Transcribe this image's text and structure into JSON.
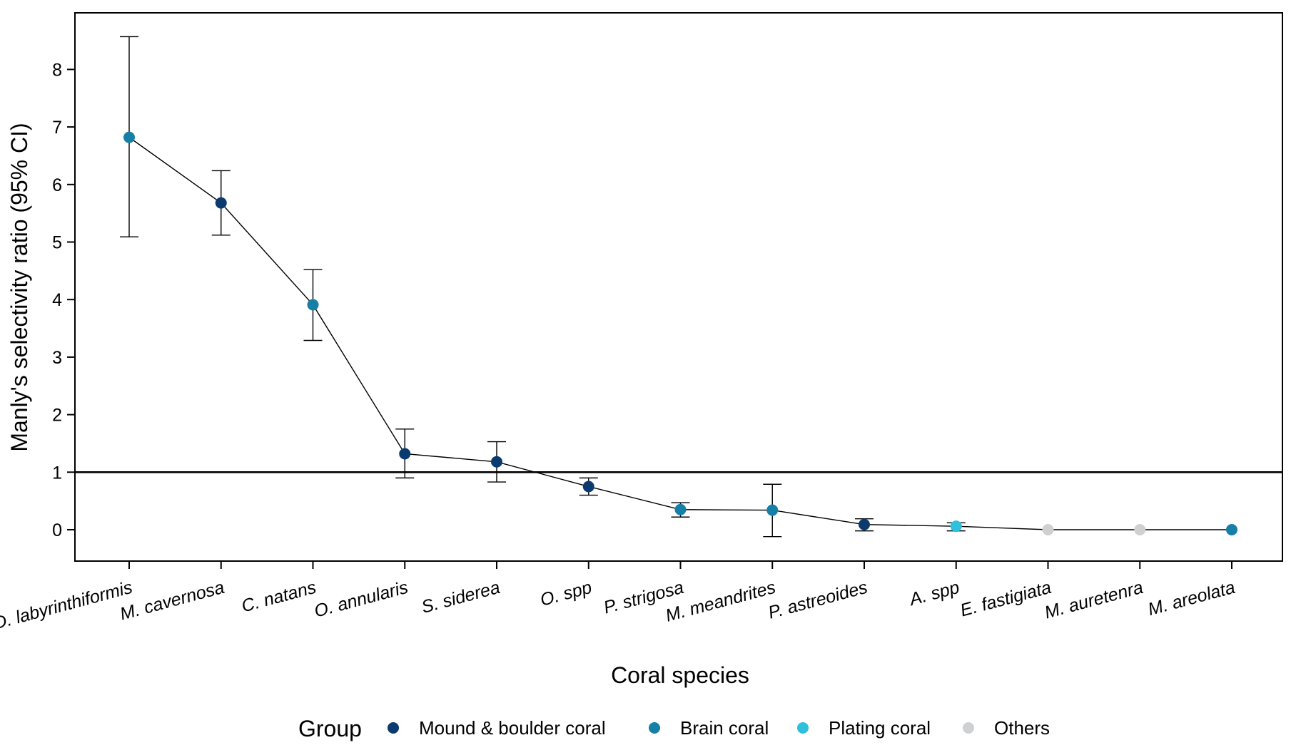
{
  "chart_data": {
    "type": "line",
    "xlabel": "Coral species",
    "ylabel": "Manly's selectivity ratio (95% CI)",
    "ylim": [
      -0.55,
      9.0
    ],
    "yticks": [
      0,
      1,
      2,
      3,
      4,
      5,
      6,
      7,
      8
    ],
    "reference_line": 1,
    "grid": false,
    "legend": {
      "title": "Group",
      "placement": "bottom",
      "entries": [
        {
          "label": "Mound & boulder coral",
          "color": "#0b3a6e"
        },
        {
          "label": "Brain coral",
          "color": "#167fa6"
        },
        {
          "label": "Plating coral",
          "color": "#2ec0dc"
        },
        {
          "label": "Others",
          "color": "#cfd0d1"
        }
      ]
    },
    "points": [
      {
        "species": "D. labyrinthiformis",
        "group": "Brain coral",
        "value": 6.82,
        "ci_low": 5.09,
        "ci_high": 8.57
      },
      {
        "species": "M. cavernosa",
        "group": "Mound & boulder coral",
        "value": 5.68,
        "ci_low": 5.12,
        "ci_high": 6.24
      },
      {
        "species": "C. natans",
        "group": "Brain coral",
        "value": 3.91,
        "ci_low": 3.29,
        "ci_high": 4.52
      },
      {
        "species": "O. annularis",
        "group": "Mound & boulder coral",
        "value": 1.32,
        "ci_low": 0.9,
        "ci_high": 1.75
      },
      {
        "species": "S. siderea",
        "group": "Mound & boulder coral",
        "value": 1.18,
        "ci_low": 0.83,
        "ci_high": 1.53
      },
      {
        "species": "O. spp",
        "group": "Mound & boulder coral",
        "value": 0.75,
        "ci_low": 0.6,
        "ci_high": 0.9
      },
      {
        "species": "P. strigosa",
        "group": "Brain coral",
        "value": 0.35,
        "ci_low": 0.22,
        "ci_high": 0.47
      },
      {
        "species": "M. meandrites",
        "group": "Brain coral",
        "value": 0.34,
        "ci_low": -0.12,
        "ci_high": 0.79
      },
      {
        "species": "P. astreoides",
        "group": "Mound & boulder coral",
        "value": 0.09,
        "ci_low": -0.02,
        "ci_high": 0.19
      },
      {
        "species": "A. spp",
        "group": "Plating coral",
        "value": 0.06,
        "ci_low": -0.02,
        "ci_high": 0.12
      },
      {
        "species": "E. fastigiata",
        "group": "Others",
        "value": 0.0,
        "ci_low": 0.0,
        "ci_high": 0.0
      },
      {
        "species": "M. auretenra",
        "group": "Others",
        "value": 0.0,
        "ci_low": 0.0,
        "ci_high": 0.0
      },
      {
        "species": "M. areolata",
        "group": "Brain coral",
        "value": 0.0,
        "ci_low": 0.0,
        "ci_high": 0.0
      }
    ]
  }
}
